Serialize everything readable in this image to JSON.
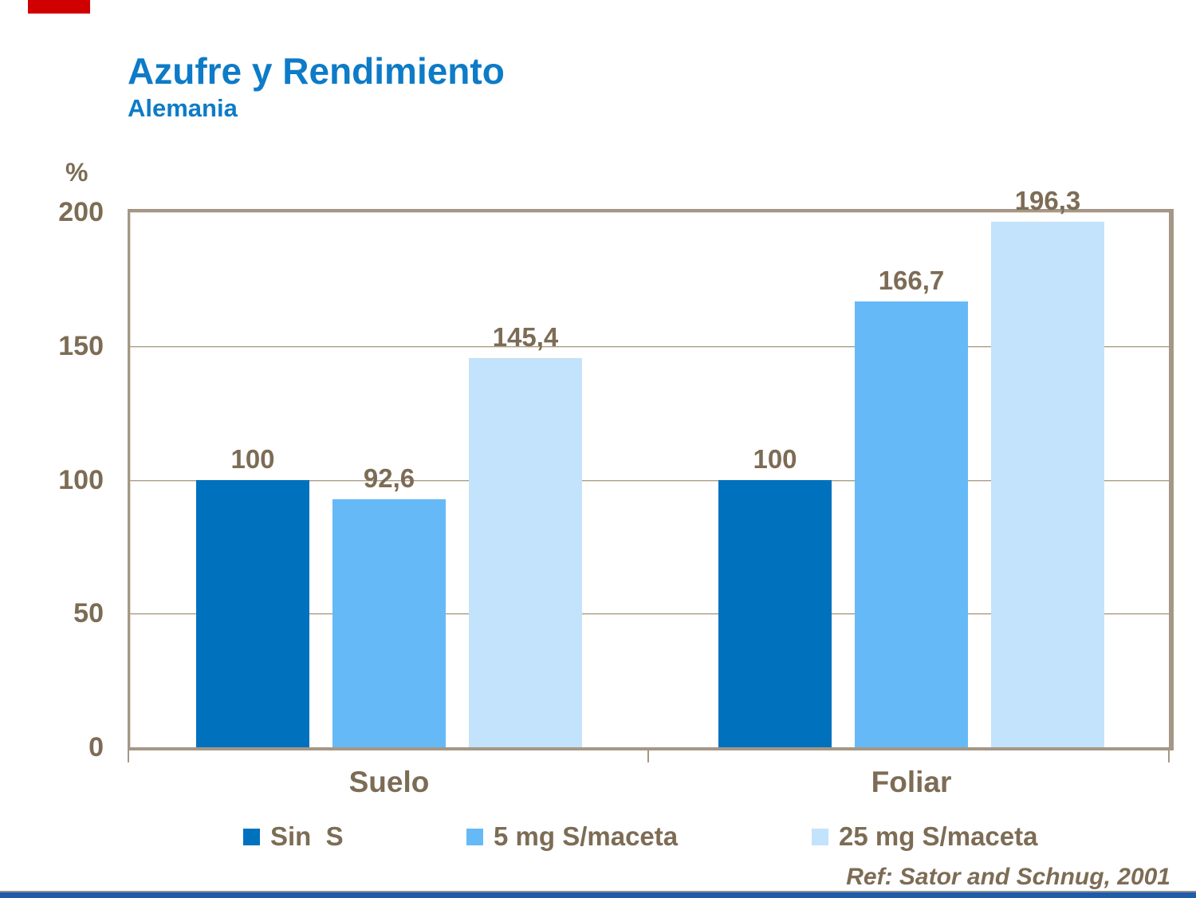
{
  "slide": {
    "title": "Azufre y Rendimiento",
    "subtitle": "Alemania",
    "reference": "Ref: Sator and Schnug, 2001",
    "title_color": "#0d7bc7",
    "accent_bar_color": "#d10000",
    "footer_bar_color": "#1f5caa",
    "text_color": "#7d6c55"
  },
  "chart_data": {
    "type": "bar",
    "title": "Azufre y Rendimiento",
    "subtitle": "Alemania",
    "unit_label": "%",
    "categories": [
      "Suelo",
      "Foliar"
    ],
    "series": [
      {
        "name": "Sin  S",
        "color": "#0071bd",
        "values": [
          100,
          100
        ]
      },
      {
        "name": "5 mg S/maceta",
        "color": "#66b9f7",
        "values": [
          92.6,
          166.7
        ]
      },
      {
        "name": "25 mg S/maceta",
        "color": "#c3e2fb",
        "values": [
          145.4,
          196.3
        ]
      }
    ],
    "value_labels": [
      [
        "100",
        "92,6",
        "145,4"
      ],
      [
        "100",
        "166,7",
        "196,3"
      ]
    ],
    "ylim": [
      0,
      200
    ],
    "yticks": [
      200,
      150,
      100,
      50,
      0
    ],
    "grid": true,
    "legend_position": "bottom",
    "decimal_separator": ","
  }
}
